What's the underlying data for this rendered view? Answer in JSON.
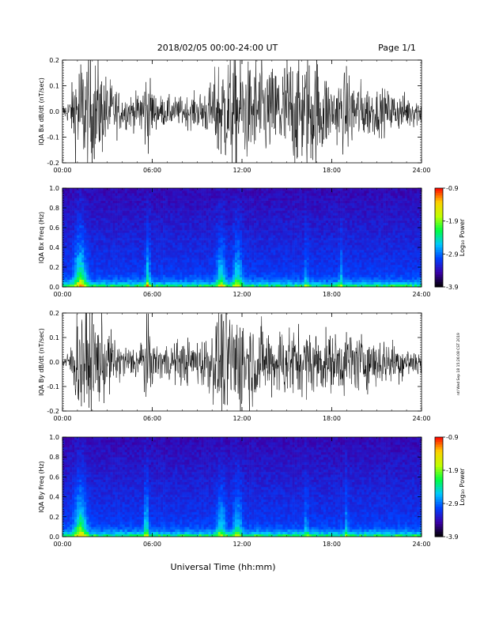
{
  "header": {
    "title": "2018/02/05  00:00-24:00 UT",
    "page": "Page 1/1"
  },
  "xlabel": "Universal Time (hh:mm)",
  "side_stamp": "ntl Wed Sep 18 15:26:08 CST 2019",
  "time_ticks": [
    "00:00",
    "06:00",
    "12:00",
    "18:00",
    "24:00"
  ],
  "colorbar_ticks": [
    "-0.9",
    "-1.9",
    "-2.9",
    "-3.9"
  ],
  "colorbar_title": "Log₁₀ Power",
  "colorbar_range": [
    -3.9,
    -0.9
  ],
  "colorbar_colors": [
    "#000000",
    "#3a00a8",
    "#0040ff",
    "#00c8ff",
    "#00ff40",
    "#c0ff00",
    "#ffd000",
    "#ff0000"
  ],
  "chart_data": [
    {
      "type": "line",
      "ylabel": "IQA Bx dB/dt (nT/sec)",
      "xlim": [
        0,
        24
      ],
      "ylim": [
        -0.2,
        0.2
      ],
      "yticks": [
        "0.2",
        "0.1",
        "0.0",
        "-0.1",
        "-0.2"
      ],
      "yticks_v": [
        0.2,
        0.1,
        0.0,
        -0.1,
        -0.2
      ],
      "envelope": {
        "hours": [
          0,
          0.5,
          1.0,
          1.2,
          1.5,
          2.0,
          3.0,
          4.0,
          5.0,
          5.6,
          5.8,
          6.2,
          7.0,
          8.0,
          9.0,
          10.0,
          10.5,
          11.0,
          11.5,
          12.0,
          12.5,
          13.0,
          14.0,
          15.0,
          16.0,
          17.0,
          18.0,
          19.0,
          20.0,
          21.0,
          22.0,
          23.0,
          24.0
        ],
        "amplitude": [
          0.02,
          0.05,
          0.2,
          0.2,
          0.2,
          0.2,
          0.12,
          0.06,
          0.06,
          0.15,
          0.12,
          0.06,
          0.05,
          0.05,
          0.06,
          0.1,
          0.2,
          0.2,
          0.2,
          0.2,
          0.16,
          0.2,
          0.15,
          0.2,
          0.2,
          0.2,
          0.1,
          0.14,
          0.1,
          0.08,
          0.07,
          0.06,
          0.05
        ]
      }
    },
    {
      "type": "heatmap",
      "ylabel": "IQA Bx Freq (Hz)",
      "xlim": [
        0,
        24
      ],
      "ylim": [
        0.0,
        1.0
      ],
      "yticks": [
        "1.0",
        "0.8",
        "0.6",
        "0.4",
        "0.2",
        "0.0"
      ],
      "yticks_v": [
        1.0,
        0.8,
        0.6,
        0.4,
        0.2,
        0.0
      ],
      "bursts": [
        {
          "hour": 1.2,
          "width": 0.4,
          "strength": 1.0
        },
        {
          "hour": 5.7,
          "width": 0.15,
          "strength": 0.8
        },
        {
          "hour": 10.6,
          "width": 0.3,
          "strength": 0.7
        },
        {
          "hour": 11.7,
          "width": 0.3,
          "strength": 0.7
        },
        {
          "hour": 16.3,
          "width": 0.1,
          "strength": 0.5
        },
        {
          "hour": 18.6,
          "width": 0.1,
          "strength": 0.5
        }
      ]
    },
    {
      "type": "line",
      "ylabel": "IQA By dB/dt (nT/sec)",
      "xlim": [
        0,
        24
      ],
      "ylim": [
        -0.2,
        0.2
      ],
      "yticks": [
        "0.2",
        "0.1",
        "0.0",
        "-0.1",
        "-0.2"
      ],
      "yticks_v": [
        0.2,
        0.1,
        0.0,
        -0.1,
        -0.2
      ],
      "envelope": {
        "hours": [
          0,
          0.5,
          1.0,
          1.2,
          1.5,
          2.0,
          3.0,
          4.0,
          5.0,
          5.6,
          5.8,
          6.2,
          7.0,
          8.0,
          9.0,
          10.0,
          10.5,
          11.0,
          11.5,
          12.0,
          12.5,
          13.0,
          14.0,
          15.0,
          16.0,
          17.0,
          18.0,
          19.0,
          20.0,
          21.0,
          22.0,
          23.0,
          24.0
        ],
        "amplitude": [
          0.02,
          0.04,
          0.2,
          0.2,
          0.2,
          0.2,
          0.12,
          0.06,
          0.06,
          0.16,
          0.12,
          0.06,
          0.07,
          0.08,
          0.08,
          0.12,
          0.2,
          0.2,
          0.2,
          0.2,
          0.16,
          0.14,
          0.12,
          0.14,
          0.12,
          0.12,
          0.1,
          0.12,
          0.1,
          0.09,
          0.08,
          0.06,
          0.05
        ]
      }
    },
    {
      "type": "heatmap",
      "ylabel": "IQA By Freq (Hz)",
      "xlim": [
        0,
        24
      ],
      "ylim": [
        0.0,
        1.0
      ],
      "yticks": [
        "1.0",
        "0.8",
        "0.6",
        "0.4",
        "0.2",
        "0.0"
      ],
      "yticks_v": [
        1.0,
        0.8,
        0.6,
        0.4,
        0.2,
        0.0
      ],
      "bursts": [
        {
          "hour": 1.2,
          "width": 0.4,
          "strength": 1.0
        },
        {
          "hour": 5.6,
          "width": 0.15,
          "strength": 0.8
        },
        {
          "hour": 10.6,
          "width": 0.3,
          "strength": 0.6
        },
        {
          "hour": 11.7,
          "width": 0.3,
          "strength": 0.6
        },
        {
          "hour": 16.3,
          "width": 0.1,
          "strength": 0.5
        },
        {
          "hour": 19.0,
          "width": 0.1,
          "strength": 0.5
        }
      ]
    }
  ]
}
